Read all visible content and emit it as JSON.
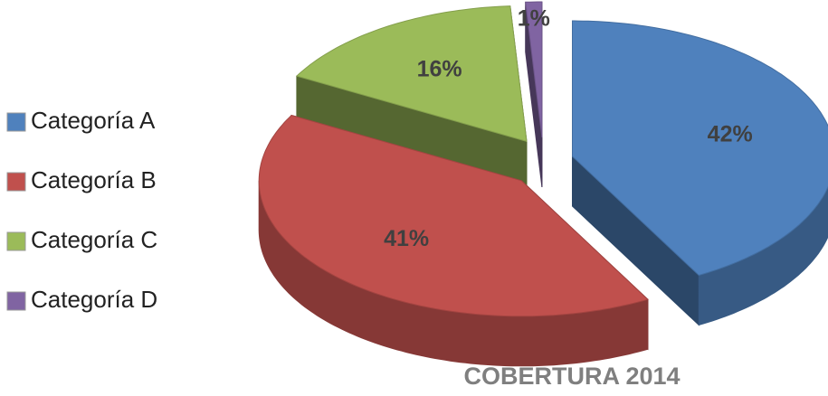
{
  "chart_data": {
    "type": "pie",
    "title": "COBERTURA 2014",
    "categories": [
      "Categoría A",
      "Categoría B",
      "Categoría C",
      "Categoría D"
    ],
    "values": [
      42,
      41,
      16,
      1
    ],
    "value_labels": [
      "42%",
      "41%",
      "16%",
      "1%"
    ],
    "colors": [
      "#4f81bd",
      "#c0504d",
      "#9bbb59",
      "#8064a2"
    ],
    "legend": "left"
  }
}
